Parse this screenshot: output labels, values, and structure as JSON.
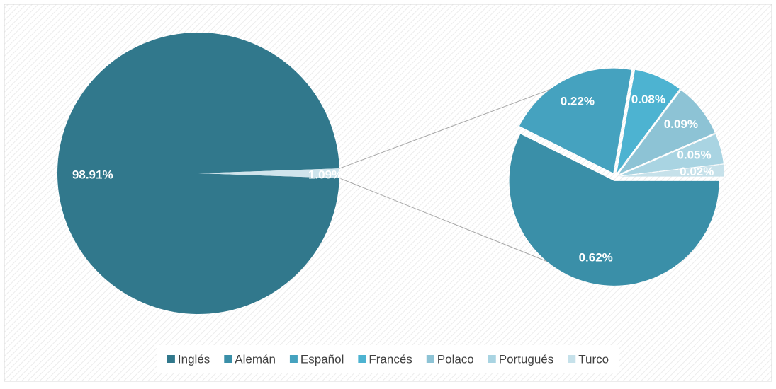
{
  "chart_data": {
    "type": "pie_of_pie",
    "categories": [
      "Inglés",
      "Alemán",
      "Español",
      "Francés",
      "Polaco",
      "Portugués",
      "Turco"
    ],
    "values": [
      98.91,
      0.62,
      0.22,
      0.08,
      0.09,
      0.05,
      0.02
    ],
    "value_labels": [
      "98.91%",
      "0.62%",
      "0.22%",
      "0.08%",
      "0.09%",
      "0.05%",
      "0.02%"
    ],
    "colors": [
      "#31788c",
      "#3a8fa8",
      "#45a2bf",
      "#4db3d1",
      "#8dc3d5",
      "#a9d4e2",
      "#c6e1ea"
    ],
    "split_index": 1,
    "other_value": 1.09,
    "other_label": "1.09%",
    "other_color": "#cfe4ec",
    "legend": "bottom"
  }
}
